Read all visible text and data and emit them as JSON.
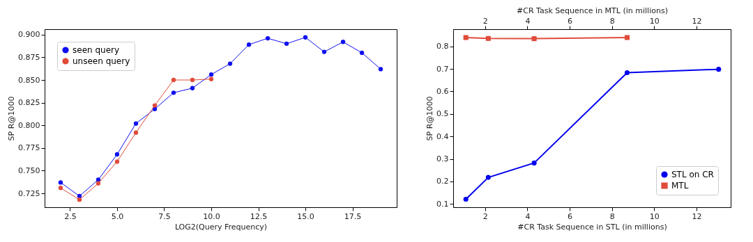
{
  "chart_data": [
    {
      "type": "line",
      "xlabel": "LOG2(Query Frequency)",
      "ylabel": "SP R@1000",
      "xlim": [
        1.15,
        19.85
      ],
      "ylim": [
        0.7097,
        0.906
      ],
      "xticks": [
        2.5,
        {
          "value": 5,
          "label": "5.0"
        },
        7.5,
        {
          "value": 10,
          "label": "10.0"
        },
        12.5,
        {
          "value": 15,
          "label": "15.0"
        },
        17.5
      ],
      "yticks": [
        0.725,
        {
          "value": 0.75,
          "label": "0.750"
        },
        0.775,
        {
          "value": 0.8,
          "label": "0.800"
        },
        0.825,
        {
          "value": 0.85,
          "label": "0.850"
        },
        0.875,
        {
          "value": 0.9,
          "label": "0.900"
        }
      ],
      "legend": "top left",
      "marker": "circle",
      "series": [
        {
          "name": "seen query",
          "color": "#1010f0",
          "x": [
            2,
            3,
            4,
            5,
            6,
            7,
            8,
            9,
            10,
            11,
            12,
            13,
            14,
            15,
            16,
            17,
            18,
            19
          ],
          "values": [
            0.737,
            0.722,
            0.74,
            0.768,
            0.802,
            0.818,
            0.836,
            0.841,
            0.856,
            0.868,
            0.889,
            0.896,
            0.89,
            0.897,
            0.881,
            0.892,
            0.88,
            0.862
          ]
        },
        {
          "name": "unseen query",
          "color": "#e04b3a",
          "x": [
            2,
            3,
            4,
            5,
            6,
            7,
            8,
            9,
            10
          ],
          "values": [
            0.731,
            0.718,
            0.736,
            0.76,
            0.792,
            0.822,
            0.85,
            0.85,
            0.851
          ]
        }
      ]
    },
    {
      "type": "line",
      "xlabel": "#CR Task Sequence in STL (in millions)",
      "x2label": "#CR Task Sequence in MTL (in millions)",
      "ylabel": "SP R@1000",
      "xlim": [
        0.49,
        13.62
      ],
      "x2lim": [
        0.49,
        13.62
      ],
      "ylim": [
        0.0856,
        0.876
      ],
      "xticks": [
        2,
        4,
        6,
        8,
        10,
        12
      ],
      "x2ticks": [
        2,
        4,
        6,
        8,
        10,
        12
      ],
      "yticks": [
        0.1,
        0.2,
        0.3,
        0.4,
        0.5,
        0.6,
        0.7,
        0.8
      ],
      "legend": "bottom right",
      "series": [
        {
          "name": "STL on CR",
          "color": "#0000ee",
          "marker": "circle",
          "x": [
            1.09,
            2.15,
            4.32,
            8.72,
            13.05
          ],
          "values": [
            0.121,
            0.218,
            0.282,
            0.683,
            0.698
          ]
        },
        {
          "name": "MTL",
          "color": "#e04b3a",
          "marker": "square",
          "axis": "x2",
          "x": [
            1.09,
            2.15,
            4.32,
            8.72
          ],
          "values": [
            0.839,
            0.835,
            0.834,
            0.839
          ]
        }
      ]
    }
  ]
}
